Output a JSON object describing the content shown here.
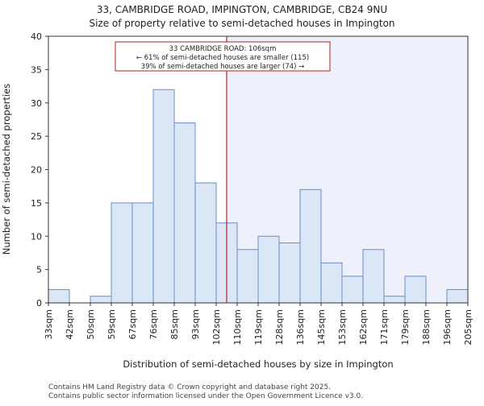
{
  "chart_data": {
    "type": "bar",
    "title": "33, CAMBRIDGE ROAD, IMPINGTON, CAMBRIDGE, CB24 9NU",
    "subtitle": "Size of property relative to semi-detached houses in Impington",
    "xlabel": "Distribution of semi-detached houses by size in Impington",
    "ylabel": "Number of semi-detached properties",
    "ylim": [
      0,
      40
    ],
    "yticks": [
      0,
      5,
      10,
      15,
      20,
      25,
      30,
      35,
      40
    ],
    "xtick_labels": [
      "33sqm",
      "42sqm",
      "50sqm",
      "59sqm",
      "67sqm",
      "76sqm",
      "85sqm",
      "93sqm",
      "102sqm",
      "110sqm",
      "119sqm",
      "128sqm",
      "136sqm",
      "145sqm",
      "153sqm",
      "162sqm",
      "171sqm",
      "179sqm",
      "188sqm",
      "196sqm",
      "205sqm"
    ],
    "values": [
      2,
      0,
      1,
      15,
      15,
      32,
      27,
      18,
      12,
      8,
      10,
      9,
      17,
      6,
      4,
      8,
      1,
      4,
      0,
      2
    ],
    "marker": {
      "bin_position": 8.5,
      "value_label": "33 CAMBRIDGE ROAD: 106sqm",
      "smaller_text": "← 61% of semi-detached houses are smaller (115)",
      "larger_text": "39% of semi-detached houses are larger (74) →"
    },
    "colors": {
      "bar_fill": "#dbe6f6",
      "bar_stroke": "#6b8cc9",
      "marker": "#b22222",
      "highlight": "#eef1fb"
    }
  },
  "footer": {
    "line1": "Contains HM Land Registry data © Crown copyright and database right 2025.",
    "line2": "Contains public sector information licensed under the Open Government Licence v3.0."
  }
}
